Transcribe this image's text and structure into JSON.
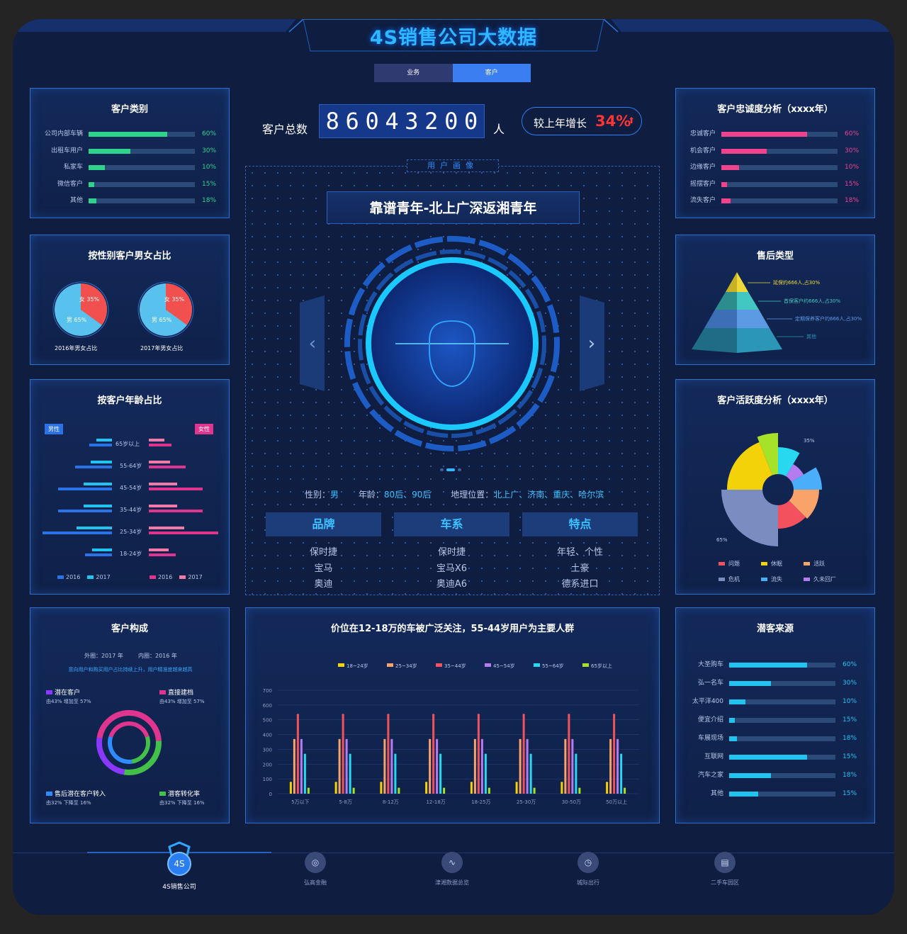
{
  "title": "4S销售公司大数据",
  "tabs": [
    {
      "label": "业务"
    },
    {
      "label": "客户"
    }
  ],
  "customer_total": {
    "label": "客户总数",
    "digits": [
      "8",
      "6",
      "0",
      "4",
      "3",
      "2",
      "0",
      "0"
    ],
    "unit": "人",
    "growth_label": "较上年增长",
    "growth_value": "34%"
  },
  "customer_type": {
    "title": "客户类别",
    "items": [
      {
        "label": "公司内部车辆",
        "pct": "60%",
        "fill": 0.74
      },
      {
        "label": "出租车用户",
        "pct": "30%",
        "fill": 0.39
      },
      {
        "label": "私家车",
        "pct": "10%",
        "fill": 0.15
      },
      {
        "label": "微信客户",
        "pct": "15%",
        "fill": 0.05
      },
      {
        "label": "其他",
        "pct": "18%",
        "fill": 0.07
      }
    ],
    "color": "#2ed28a"
  },
  "loyalty": {
    "title": "客户忠诚度分析（xxxx年）",
    "items": [
      {
        "label": "忠诚客户",
        "pct": "60%",
        "fill": 0.74
      },
      {
        "label": "机会客户",
        "pct": "30%",
        "fill": 0.39
      },
      {
        "label": "边缘客户",
        "pct": "10%",
        "fill": 0.15
      },
      {
        "label": "摇摆客户",
        "pct": "15%",
        "fill": 0.05
      },
      {
        "label": "流失客户",
        "pct": "18%",
        "fill": 0.08
      }
    ],
    "color": "#f0438e"
  },
  "gender": {
    "title": "按性别客户男女占比",
    "pies": [
      {
        "caption": "2016年男女占比",
        "female": "女 35%",
        "male": "男 65%",
        "female_frac": 0.35
      },
      {
        "caption": "2017年男女占比",
        "female": "女 35%",
        "male": "男 65%",
        "female_frac": 0.35
      }
    ]
  },
  "age": {
    "title": "按客户年龄占比",
    "male_tag": "男性",
    "female_tag": "女性",
    "groups": [
      "65岁以上",
      "55-64岁",
      "45-54岁",
      "35-44岁",
      "25-34岁",
      "18-24岁"
    ],
    "male_2016": [
      32,
      52,
      76,
      76,
      98,
      38
    ],
    "male_2017": [
      22,
      30,
      40,
      40,
      50,
      28
    ],
    "female_2016": [
      32,
      52,
      76,
      76,
      98,
      38
    ],
    "female_2017": [
      22,
      30,
      40,
      40,
      50,
      28
    ],
    "legend_male": [
      "2016",
      "2017"
    ],
    "legend_female": [
      "2016",
      "2017"
    ]
  },
  "composition": {
    "title": "客户构成",
    "external": "外圈：2017 年",
    "internal": "内圈：2016 年",
    "note": "意向用户和购买用户占比持续上升，用户精准度越来越高",
    "items": [
      {
        "label": "潜在客户",
        "sub": "由43% 增加至 57%",
        "color": "#8a37ff"
      },
      {
        "label": "直接建档",
        "sub": "由43% 增加至 57%",
        "color": "#e0358f"
      },
      {
        "label": "售后潜在客户转入",
        "sub": "由32% 下降至 16%",
        "color": "#2f8cff"
      },
      {
        "label": "潜客转化率",
        "sub": "由32% 下降至 16%",
        "color": "#43c04a"
      }
    ]
  },
  "portrait": {
    "box_label": "用户画像",
    "headline": "靠谱青年-北上广深返湘青年",
    "gender_label": "性别：",
    "gender": "男",
    "age_label": "年龄：",
    "age": "80后、90后",
    "geo_label": "地理位置：",
    "geo": "北上广、济南、重庆、哈尔滨",
    "columns": [
      {
        "head": "品牌",
        "items": [
          "保时捷",
          "宝马",
          "奥迪"
        ]
      },
      {
        "head": "车系",
        "items": [
          "保时捷",
          "宝马X6",
          "奥迪A6"
        ]
      },
      {
        "head": "特点",
        "items": [
          "年轻、个性",
          "土豪",
          "德系进口"
        ]
      }
    ]
  },
  "after_sales": {
    "title": "售后类型",
    "labels": [
      "延保约666人,占30%",
      "首保客户约666人,占30%",
      "定期保养客户约666人,占30%",
      "其他"
    ]
  },
  "activity": {
    "title": "客户活跃度分析（xxxx年）",
    "label_35": "35%",
    "label_65": "65%",
    "legend": [
      {
        "label": "问题",
        "color": "#f4515e"
      },
      {
        "label": "休眠",
        "color": "#f4d20a"
      },
      {
        "label": "活跃",
        "color": "#f9a26a"
      },
      {
        "label": "危机",
        "color": "#7a8dc0"
      },
      {
        "label": "流失",
        "color": "#4aaefb"
      },
      {
        "label": "久未回厂",
        "color": "#b57cf0"
      }
    ]
  },
  "chart_data": {
    "type": "bar",
    "title": "价位在12-18万的车被广泛关注，55-44岁用户为主要人群",
    "categories": [
      "5万以下",
      "5-8万",
      "8-12万",
      "12-18万",
      "18-25万",
      "25-30万",
      "30-50万",
      "50万以上"
    ],
    "yticks": [
      "0",
      "100",
      "200",
      "300",
      "400",
      "500",
      "600",
      "700"
    ],
    "ylim": [
      0,
      700
    ],
    "series": [
      {
        "name": "18~24岁",
        "color": "#f4d20a",
        "values": [
          80,
          80,
          80,
          80,
          80,
          80,
          80,
          80
        ]
      },
      {
        "name": "25~34岁",
        "color": "#f9a26a",
        "values": [
          370,
          370,
          370,
          370,
          370,
          370,
          370,
          370
        ]
      },
      {
        "name": "35~44岁",
        "color": "#f4515e",
        "values": [
          540,
          540,
          540,
          540,
          540,
          540,
          540,
          540
        ]
      },
      {
        "name": "45~54岁",
        "color": "#b57cf0",
        "values": [
          370,
          370,
          370,
          370,
          370,
          370,
          370,
          370
        ]
      },
      {
        "name": "55~64岁",
        "color": "#27d8f0",
        "values": [
          270,
          270,
          270,
          270,
          270,
          270,
          270,
          270
        ]
      },
      {
        "name": "65岁以上",
        "color": "#a6e22a",
        "values": [
          40,
          40,
          40,
          40,
          40,
          40,
          40,
          40
        ]
      }
    ]
  },
  "sources": {
    "title": "潜客来源",
    "items": [
      {
        "label": "大圣购车",
        "pct": "60%",
        "fill": 0.73
      },
      {
        "label": "弘一名车",
        "pct": "30%",
        "fill": 0.39
      },
      {
        "label": "太平洋400",
        "pct": "10%",
        "fill": 0.15
      },
      {
        "label": "便宜介绍",
        "pct": "15%",
        "fill": 0.05
      },
      {
        "label": "车展现场",
        "pct": "18%",
        "fill": 0.07
      },
      {
        "label": "互联网",
        "pct": "15%",
        "fill": 0.73
      },
      {
        "label": "汽车之家",
        "pct": "18%",
        "fill": 0.39
      },
      {
        "label": "其他",
        "pct": "15%",
        "fill": 0.27
      }
    ],
    "color": "#23c3f0"
  },
  "nav": [
    {
      "label": "4S销售公司",
      "icon": "4S"
    },
    {
      "label": "弘高金融",
      "icon": "◎"
    },
    {
      "label": "津湘数据总览",
      "icon": "∿"
    },
    {
      "label": "城际出行",
      "icon": "◷"
    },
    {
      "label": "二手车园区",
      "icon": "▤"
    }
  ]
}
